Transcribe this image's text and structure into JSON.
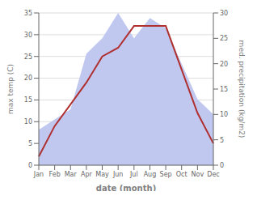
{
  "chart_data": {
    "type": "line",
    "xlabel": "date (month)",
    "ylabel": "max temp (C)",
    "y2label": "med. precipitation (kg/m2)",
    "categories": [
      "Jan",
      "Feb",
      "Mar",
      "Apr",
      "May",
      "Jun",
      "Jul",
      "Aug",
      "Sep",
      "Oct",
      "Nov",
      "Dec"
    ],
    "series": [
      {
        "type": "area",
        "color": "#c0c8f0",
        "axis": "y2",
        "values": [
          7,
          9,
          11,
          22,
          25,
          30,
          25,
          29,
          27,
          20,
          13,
          10
        ]
      },
      {
        "type": "line",
        "color": "#b03030",
        "values": [
          2,
          9,
          14,
          19,
          25,
          27,
          32,
          32,
          32,
          22,
          12,
          5
        ]
      }
    ],
    "ylim": [
      0,
      35
    ],
    "yticks": [
      0,
      5,
      10,
      15,
      20,
      25,
      30,
      35
    ],
    "y2lim": [
      0,
      30
    ],
    "y2ticks": [
      0,
      5,
      10,
      15,
      20,
      25,
      30
    ],
    "grid": true
  }
}
